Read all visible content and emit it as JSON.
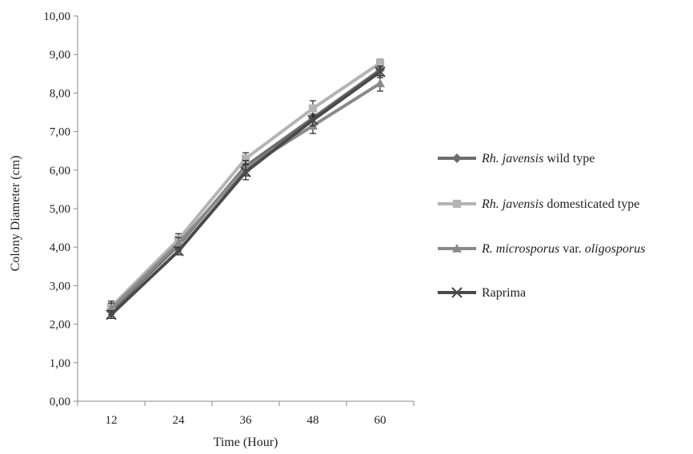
{
  "chart_data": {
    "type": "line",
    "xlabel": "Time (Hour)",
    "ylabel": "Colony Diameter (cm)",
    "categories": [
      "12",
      "24",
      "36",
      "48",
      "60"
    ],
    "ylim": [
      0,
      10
    ],
    "yticks": [
      "0,00",
      "1,00",
      "2,00",
      "3,00",
      "4,00",
      "5,00",
      "6,00",
      "7,00",
      "8,00",
      "9,00",
      "10,00"
    ],
    "grid": false,
    "legend_position": "right",
    "series": [
      {
        "name_parts": [
          {
            "text": "Rh. javensis",
            "italic": true
          },
          {
            "text": " wild type",
            "italic": false
          }
        ],
        "values": [
          2.35,
          4.05,
          6.1,
          7.35,
          8.6
        ],
        "errors": [
          0.15,
          0.15,
          0.2,
          0.2,
          0.15
        ],
        "color": "#6e6e6e",
        "marker": "diamond"
      },
      {
        "name_parts": [
          {
            "text": "Rh. javensis",
            "italic": true
          },
          {
            "text": " domesticated type",
            "italic": false
          }
        ],
        "values": [
          2.45,
          4.2,
          6.3,
          7.6,
          8.78
        ],
        "errors": [
          0.15,
          0.15,
          0.15,
          0.2,
          0.1
        ],
        "color": "#b4b4b4",
        "marker": "square"
      },
      {
        "name_parts": [
          {
            "text": "R. microsporus",
            "italic": true
          },
          {
            "text": " var. ",
            "italic": false
          },
          {
            "text": "oligosporus",
            "italic": true
          }
        ],
        "values": [
          2.4,
          4.1,
          6.05,
          7.15,
          8.25
        ],
        "errors": [
          0.15,
          0.15,
          0.2,
          0.2,
          0.2
        ],
        "color": "#8a8a8a",
        "marker": "triangle"
      },
      {
        "name_parts": [
          {
            "text": "Raprima",
            "italic": false
          }
        ],
        "values": [
          2.25,
          3.9,
          5.95,
          7.3,
          8.55
        ],
        "errors": [
          0.1,
          0.1,
          0.2,
          0.15,
          0.15
        ],
        "color": "#4a4a4a",
        "marker": "x"
      }
    ]
  }
}
